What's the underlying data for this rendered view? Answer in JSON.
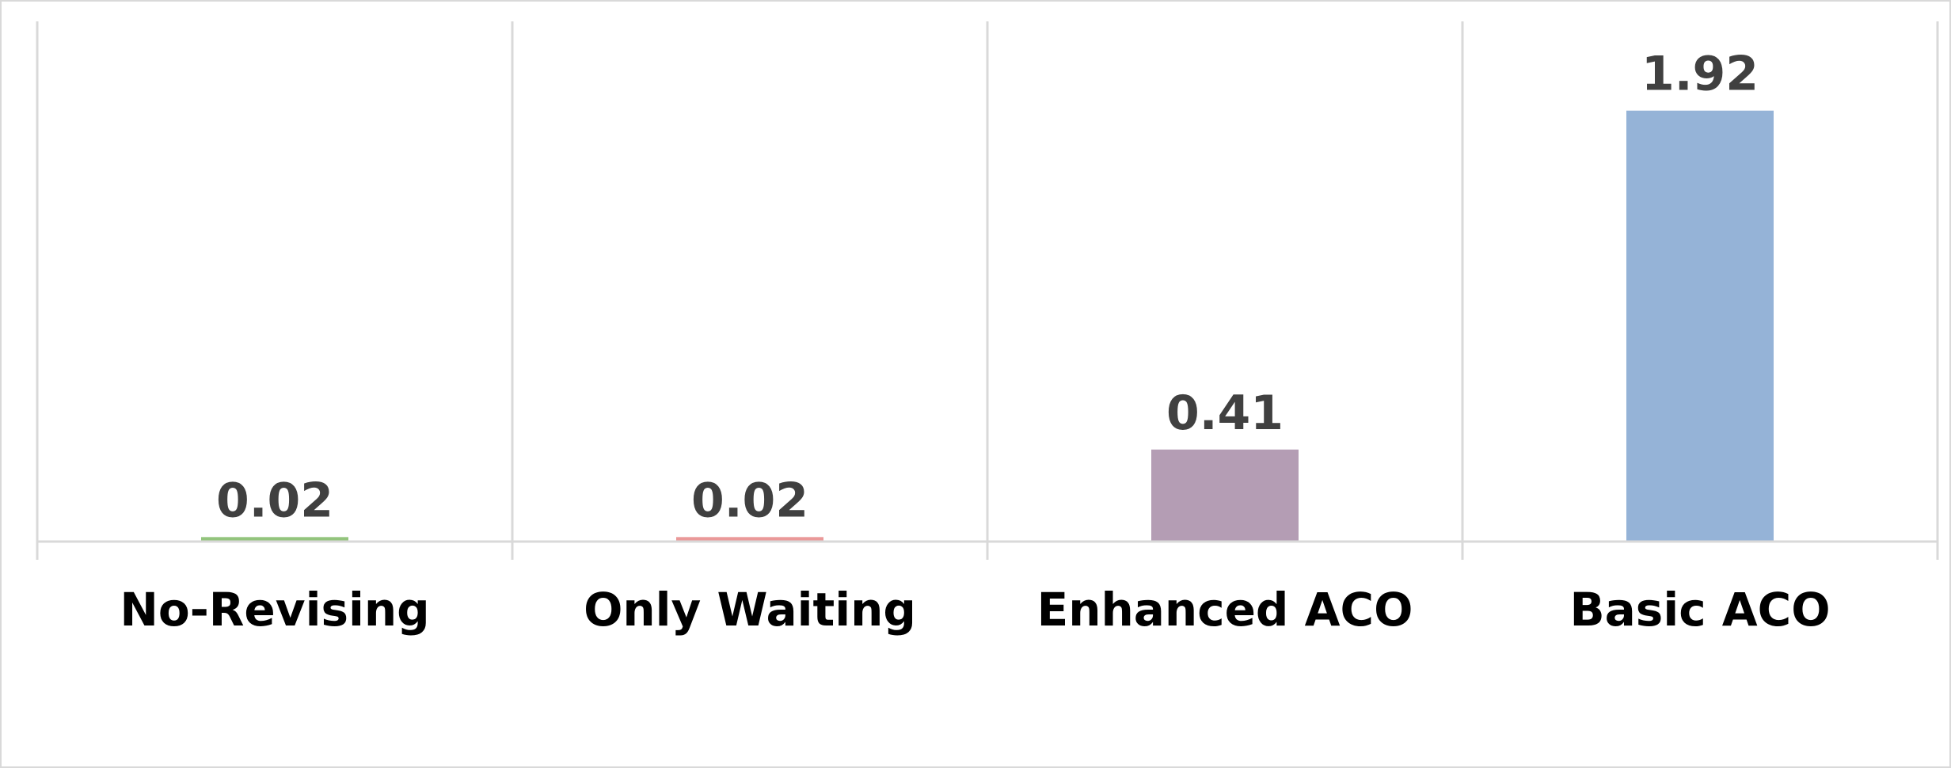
{
  "chart_data": {
    "type": "bar",
    "categories": [
      "No-Revising",
      "Only Waiting",
      "Enhanced ACO",
      "Basic ACO"
    ],
    "values": [
      0.02,
      0.02,
      0.41,
      1.92
    ],
    "data_labels": [
      "0.02",
      "0.02",
      "0.41",
      "1.92"
    ],
    "colors": [
      "#93c47d",
      "#ea9999",
      "#b49db4",
      "#95b3d7"
    ],
    "title": "",
    "xlabel": "",
    "ylabel": "",
    "ylim": [
      0,
      2.3
    ],
    "grid": "vertical category separators",
    "legend": "none"
  }
}
